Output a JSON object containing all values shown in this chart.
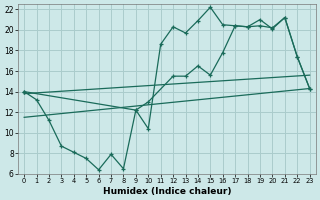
{
  "xlabel": "Humidex (Indice chaleur)",
  "bg_color": "#cde8e8",
  "grid_color": "#aacccc",
  "line_color": "#1a6b5a",
  "xlim": [
    -0.5,
    23.5
  ],
  "ylim": [
    6,
    22.5
  ],
  "xticks": [
    0,
    1,
    2,
    3,
    4,
    5,
    6,
    7,
    8,
    9,
    10,
    11,
    12,
    13,
    14,
    15,
    16,
    17,
    18,
    19,
    20,
    21,
    22,
    23
  ],
  "yticks": [
    6,
    8,
    10,
    12,
    14,
    16,
    18,
    20,
    22
  ],
  "line_zigzag_x": [
    0,
    1,
    2,
    3,
    4,
    5,
    6,
    7,
    8,
    9,
    10,
    11,
    12,
    13,
    14,
    15,
    16,
    17,
    18,
    19,
    20,
    21,
    22,
    23
  ],
  "line_zigzag_y": [
    14.0,
    13.2,
    11.2,
    8.7,
    8.1,
    7.5,
    6.4,
    7.9,
    6.5,
    12.2,
    10.4,
    18.6,
    20.3,
    19.7,
    20.9,
    22.2,
    20.5,
    20.4,
    20.3,
    21.0,
    20.1,
    21.2,
    17.4,
    14.3
  ],
  "line_upper_x": [
    0,
    9,
    10,
    12,
    13,
    14,
    15,
    16,
    17,
    18,
    19,
    20,
    21,
    22,
    23
  ],
  "line_upper_y": [
    14.0,
    12.2,
    13.0,
    15.5,
    15.5,
    16.5,
    15.6,
    17.8,
    20.4,
    20.3,
    20.4,
    20.2,
    21.2,
    17.4,
    14.3
  ],
  "line_trend1_x": [
    0,
    23
  ],
  "line_trend1_y": [
    13.8,
    15.6
  ],
  "line_trend2_x": [
    0,
    23
  ],
  "line_trend2_y": [
    11.5,
    14.3
  ]
}
